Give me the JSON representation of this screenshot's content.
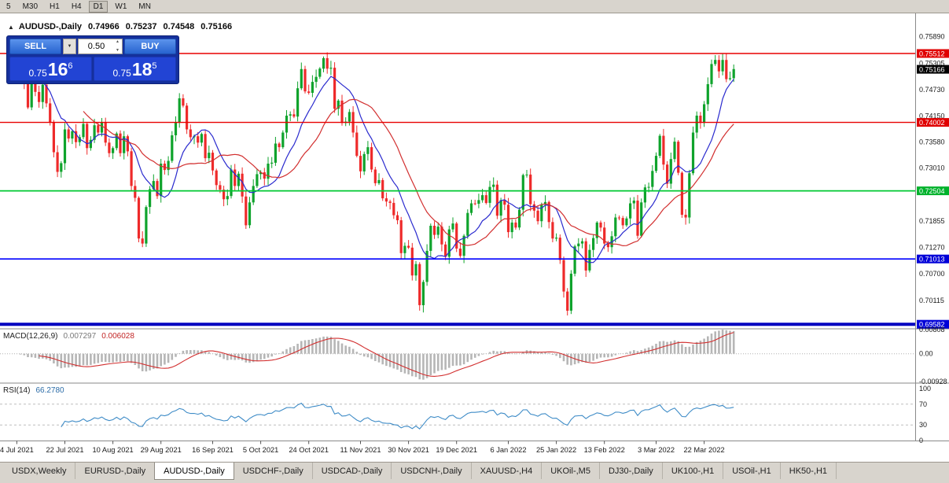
{
  "toolbar": {
    "timeframes": [
      "5",
      "M30",
      "H1",
      "H4",
      "D1",
      "W1",
      "MN"
    ],
    "active_timeframe": "D1"
  },
  "chart": {
    "symbol_title": "AUDUSD-,Daily",
    "ohlc": {
      "open": "0.74966",
      "high": "0.75237",
      "low": "0.74548",
      "close": "0.75166"
    },
    "trade_panel": {
      "sell_label": "SELL",
      "buy_label": "BUY",
      "lot": "0.50",
      "sell_price": {
        "big": "0.75",
        "pips": "16",
        "point": "6"
      },
      "buy_price": {
        "big": "0.75",
        "pips": "18",
        "point": "5"
      }
    },
    "macd_label": "MACD(12,26,9)",
    "macd_value_main": "0.007297",
    "macd_value_signal": "0.006028",
    "rsi_label": "RSI(14)",
    "rsi_value": "66.2780"
  },
  "price_scale": {
    "labels": [
      {
        "text": "0.75890",
        "bg": null
      },
      {
        "text": "0.75512",
        "bg": "#e00000"
      },
      {
        "text": "0.75305",
        "bg": null
      },
      {
        "text": "0.75166",
        "bg": "#000000"
      },
      {
        "text": "0.74730",
        "bg": null
      },
      {
        "text": "0.74150",
        "bg": null
      },
      {
        "text": "0.74002",
        "bg": "#e00000"
      },
      {
        "text": "0.73580",
        "bg": null
      },
      {
        "text": "0.73010",
        "bg": null
      },
      {
        "text": "0.72504",
        "bg": "#00b22c"
      },
      {
        "text": "0.71855",
        "bg": null
      },
      {
        "text": "0.71270",
        "bg": null
      },
      {
        "text": "0.71013",
        "bg": "#0000d8"
      },
      {
        "text": "0.70700",
        "bg": null
      },
      {
        "text": "0.70115",
        "bg": null
      },
      {
        "text": "0.69582",
        "bg": "#0000d8"
      }
    ]
  },
  "indicator_scales": {
    "macd": [
      "0.00808",
      "0.00",
      "-0.00928"
    ],
    "rsi": [
      "100",
      "70",
      "30",
      "0"
    ]
  },
  "tabs": {
    "items": [
      "USDX,Weekly",
      "EURUSD-,Daily",
      "AUDUSD-,Daily",
      "USDCHF-,Daily",
      "USDCAD-,Daily",
      "USDCNH-,Daily",
      "XAUUSD-,H4",
      "UKOil-,M5",
      "DJ30-,Daily",
      "UK100-,H1",
      "USOil-,H1",
      "HK50-,H1"
    ],
    "active_index": 2
  },
  "chart_data": {
    "type": "candlestick",
    "symbol": "AUDUSD",
    "timeframe": "Daily",
    "title": "AUDUSD-,Daily",
    "price_axis": {
      "max": 0.7639,
      "min": 0.695
    },
    "closes": [
      0.7527,
      0.7525,
      0.7532,
      0.7494,
      0.7488,
      0.7433,
      0.7487,
      0.7467,
      0.7445,
      0.7483,
      0.7442,
      0.74,
      0.7335,
      0.7292,
      0.7311,
      0.7385,
      0.7365,
      0.7381,
      0.7357,
      0.7368,
      0.7397,
      0.7344,
      0.7362,
      0.7394,
      0.7378,
      0.74,
      0.7356,
      0.7333,
      0.7344,
      0.7376,
      0.7333,
      0.737,
      0.7337,
      0.7261,
      0.7235,
      0.7146,
      0.7135,
      0.7215,
      0.7254,
      0.7272,
      0.7239,
      0.731,
      0.7296,
      0.7316,
      0.7372,
      0.7401,
      0.7453,
      0.7437,
      0.7385,
      0.7368,
      0.737,
      0.7356,
      0.7375,
      0.7322,
      0.7334,
      0.7295,
      0.7263,
      0.7253,
      0.7232,
      0.7239,
      0.7297,
      0.7261,
      0.7288,
      0.7238,
      0.7175,
      0.7225,
      0.7261,
      0.7287,
      0.7291,
      0.7277,
      0.731,
      0.7312,
      0.7354,
      0.7346,
      0.7378,
      0.7415,
      0.7418,
      0.7413,
      0.7475,
      0.7517,
      0.7468,
      0.7465,
      0.7489,
      0.75,
      0.7518,
      0.7541,
      0.7518,
      0.752,
      0.743,
      0.7448,
      0.7399,
      0.7402,
      0.7423,
      0.7378,
      0.7327,
      0.7293,
      0.7331,
      0.7346,
      0.7297,
      0.7267,
      0.7274,
      0.7234,
      0.7227,
      0.7224,
      0.7197,
      0.7186,
      0.7114,
      0.713,
      0.7126,
      0.7065,
      0.709,
      0.7,
      0.7051,
      0.7119,
      0.7174,
      0.7154,
      0.7172,
      0.7133,
      0.7106,
      0.7166,
      0.7179,
      0.7124,
      0.7108,
      0.7152,
      0.7202,
      0.7223,
      0.7222,
      0.723,
      0.7241,
      0.7224,
      0.7259,
      0.7264,
      0.7196,
      0.723,
      0.722,
      0.716,
      0.7181,
      0.717,
      0.7209,
      0.7285,
      0.7286,
      0.7221,
      0.7207,
      0.7184,
      0.722,
      0.7226,
      0.7182,
      0.7146,
      0.7148,
      0.7099,
      0.703,
      0.6988,
      0.7069,
      0.7129,
      0.7135,
      0.714,
      0.7076,
      0.7121,
      0.7147,
      0.7181,
      0.717,
      0.7135,
      0.7127,
      0.7151,
      0.7192,
      0.7191,
      0.7175,
      0.719,
      0.7223,
      0.7229,
      0.7152,
      0.7225,
      0.7258,
      0.7259,
      0.7294,
      0.7327,
      0.7371,
      0.7308,
      0.7266,
      0.732,
      0.7358,
      0.729,
      0.7198,
      0.7192,
      0.7289,
      0.7378,
      0.7415,
      0.7399,
      0.744,
      0.7484,
      0.7528,
      0.7537,
      0.7512,
      0.7537,
      0.7495,
      0.7497,
      0.7517
    ],
    "x_labels": [
      {
        "text": "4 Jul 2021",
        "bar": 2
      },
      {
        "text": "22 Jul 2021",
        "bar": 15
      },
      {
        "text": "10 Aug 2021",
        "bar": 28
      },
      {
        "text": "29 Aug 2021",
        "bar": 41
      },
      {
        "text": "16 Sep 2021",
        "bar": 55
      },
      {
        "text": "5 Oct 2021",
        "bar": 68
      },
      {
        "text": "24 Oct 2021",
        "bar": 81
      },
      {
        "text": "11 Nov 2021",
        "bar": 95
      },
      {
        "text": "30 Nov 2021",
        "bar": 108
      },
      {
        "text": "19 Dec 2021",
        "bar": 121
      },
      {
        "text": "6 Jan 2022",
        "bar": 135
      },
      {
        "text": "25 Jan 2022",
        "bar": 148
      },
      {
        "text": "13 Feb 2022",
        "bar": 161
      },
      {
        "text": "3 Mar 2022",
        "bar": 175
      },
      {
        "text": "22 Mar 2022",
        "bar": 188
      }
    ],
    "horizontal_lines": [
      {
        "price": 0.75512,
        "color": "#e80000",
        "width": 1.4
      },
      {
        "price": 0.74002,
        "color": "#e80000",
        "width": 1.4
      },
      {
        "price": 0.72504,
        "color": "#00c832",
        "width": 1.8
      },
      {
        "price": 0.71013,
        "color": "#0000ff",
        "width": 1.6
      },
      {
        "price": 0.69582,
        "color": "#0000c0",
        "width": 4
      }
    ],
    "moving_averages": [
      {
        "period": 10,
        "color": "#2a2ace"
      },
      {
        "period": 21,
        "color": "#d22f2f"
      }
    ],
    "macd": {
      "fast": 12,
      "slow": 26,
      "signal": 9,
      "scale_top": 0.00808,
      "scale_bottom": -0.00928,
      "histogram_color": "#b6b6b6",
      "signal_color": "#d22f2f"
    },
    "rsi": {
      "period": 14,
      "levels": [
        70,
        30
      ],
      "color": "#3f8cc7",
      "scale": [
        100,
        70,
        30,
        0
      ]
    },
    "candle_colors": {
      "up": "#0fa32c",
      "down": "#ee2a2a"
    }
  }
}
